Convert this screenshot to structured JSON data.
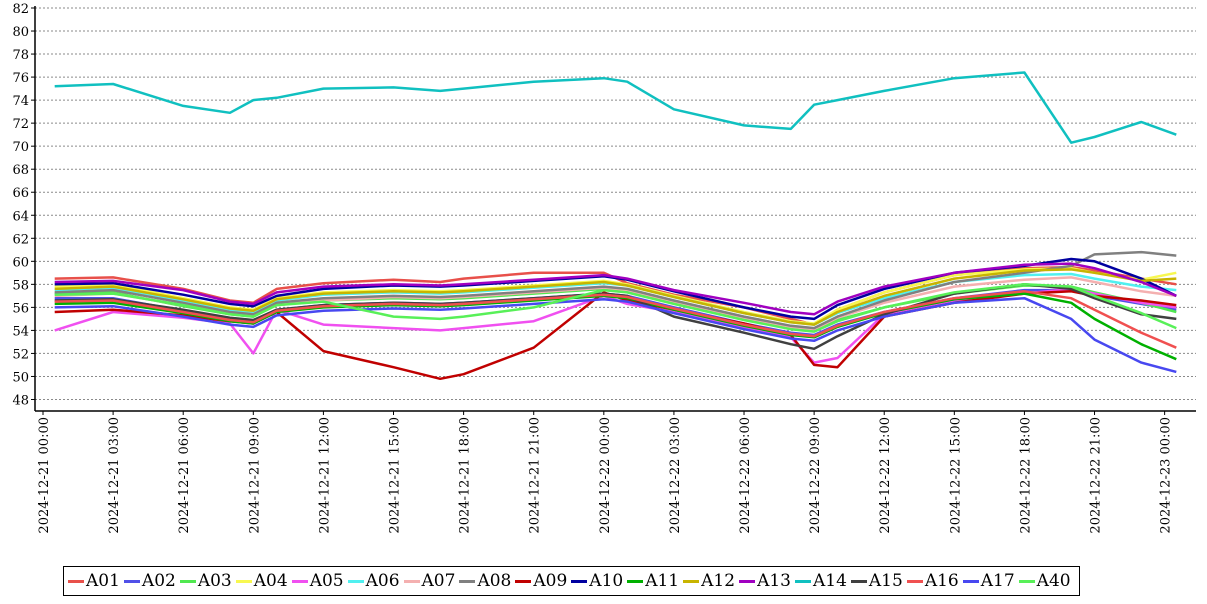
{
  "chart_data": {
    "type": "line",
    "title": "",
    "xlabel": "",
    "ylabel": "",
    "ylim": [
      47,
      82
    ],
    "yticks": [
      48,
      50,
      52,
      54,
      56,
      58,
      60,
      62,
      64,
      66,
      68,
      70,
      72,
      74,
      76,
      78,
      80,
      82
    ],
    "xlim": [
      "2024-12-21 00:00",
      "2024-12-23 01:00"
    ],
    "xticks": [
      "2024-12-21 00:00",
      "2024-12-21 03:00",
      "2024-12-21 06:00",
      "2024-12-21 09:00",
      "2024-12-21 12:00",
      "2024-12-21 15:00",
      "2024-12-21 18:00",
      "2024-12-21 21:00",
      "2024-12-22 00:00",
      "2024-12-22 03:00",
      "2024-12-22 06:00",
      "2024-12-22 09:00",
      "2024-12-22 12:00",
      "2024-12-22 15:00",
      "2024-12-22 18:00",
      "2024-12-22 21:00",
      "2024-12-23 00:00"
    ],
    "grid": "horizontal dashed",
    "legend_position": "bottom",
    "x": [
      "2024-12-21 00:30",
      "2024-12-21 03:00",
      "2024-12-21 06:00",
      "2024-12-21 08:00",
      "2024-12-21 09:00",
      "2024-12-21 10:00",
      "2024-12-21 12:00",
      "2024-12-21 15:00",
      "2024-12-21 17:00",
      "2024-12-21 18:00",
      "2024-12-21 21:00",
      "2024-12-22 00:00",
      "2024-12-22 01:00",
      "2024-12-22 03:00",
      "2024-12-22 06:00",
      "2024-12-22 08:00",
      "2024-12-22 09:00",
      "2024-12-22 10:00",
      "2024-12-22 12:00",
      "2024-12-22 15:00",
      "2024-12-22 18:00",
      "2024-12-22 20:00",
      "2024-12-22 21:00",
      "2024-12-22 23:00",
      "2024-12-23 00:30"
    ],
    "series": [
      {
        "name": "A01",
        "color": "#e8504a",
        "values": [
          58.5,
          58.6,
          57.6,
          56.6,
          56.4,
          57.6,
          58.1,
          58.4,
          58.2,
          58.5,
          59.0,
          59.0,
          58.1,
          57.1,
          56.0,
          55.0,
          54.5,
          55.8,
          57.3,
          58.8,
          59.4,
          59.5,
          59.2,
          58.5,
          58.0
        ]
      },
      {
        "name": "A02",
        "color": "#5050e8",
        "values": [
          56.8,
          56.8,
          55.7,
          55.0,
          54.8,
          55.8,
          56.2,
          56.4,
          56.3,
          56.4,
          56.8,
          57.2,
          57.0,
          56.0,
          54.6,
          53.8,
          53.6,
          54.5,
          55.6,
          56.8,
          57.5,
          57.5,
          57.0,
          56.3,
          55.8
        ]
      },
      {
        "name": "A03",
        "color": "#50e850",
        "values": [
          57.2,
          57.3,
          56.1,
          55.4,
          55.2,
          56.2,
          56.6,
          56.8,
          56.7,
          56.8,
          57.2,
          57.6,
          57.4,
          56.4,
          55.0,
          54.2,
          54.0,
          54.9,
          56.0,
          57.2,
          57.9,
          57.8,
          57.3,
          56.4,
          55.6
        ]
      },
      {
        "name": "A04",
        "color": "#f8f850",
        "values": [
          57.8,
          58.0,
          56.8,
          56.0,
          55.8,
          56.8,
          57.3,
          57.5,
          57.4,
          57.5,
          57.9,
          58.3,
          58.0,
          57.0,
          55.6,
          54.8,
          54.6,
          55.8,
          57.3,
          58.8,
          59.3,
          59.4,
          59.0,
          58.4,
          59.0
        ]
      },
      {
        "name": "A05",
        "color": "#f050f0",
        "values": [
          54.0,
          55.6,
          55.1,
          54.6,
          52.0,
          55.8,
          54.5,
          54.2,
          54.0,
          54.2,
          54.8,
          57.0,
          56.3,
          55.6,
          54.2,
          53.4,
          51.2,
          51.6,
          55.4,
          56.6,
          57.2,
          57.6,
          57.2,
          56.4,
          56.0
        ]
      },
      {
        "name": "A06",
        "color": "#50f0f0",
        "values": [
          57.5,
          57.7,
          56.6,
          55.8,
          55.6,
          56.6,
          57.1,
          57.3,
          57.2,
          57.3,
          57.7,
          58.1,
          57.9,
          56.9,
          55.5,
          54.7,
          54.5,
          55.5,
          56.8,
          58.2,
          58.8,
          58.9,
          58.5,
          57.8,
          57.5
        ]
      },
      {
        "name": "A07",
        "color": "#f4b0b0",
        "values": [
          57.0,
          57.2,
          56.2,
          55.5,
          55.3,
          56.2,
          56.6,
          56.9,
          56.8,
          56.9,
          57.3,
          57.7,
          57.5,
          56.5,
          55.1,
          54.3,
          54.1,
          55.1,
          56.4,
          57.8,
          58.4,
          58.6,
          58.2,
          57.4,
          57.0
        ]
      },
      {
        "name": "A08",
        "color": "#808080",
        "values": [
          57.3,
          57.5,
          56.4,
          55.6,
          55.4,
          56.4,
          56.8,
          57.0,
          56.9,
          57.0,
          57.4,
          57.8,
          57.6,
          56.6,
          55.2,
          54.4,
          54.2,
          55.2,
          56.6,
          58.2,
          59.0,
          59.6,
          60.6,
          60.8,
          60.5
        ]
      },
      {
        "name": "A09",
        "color": "#c00000",
        "values": [
          55.6,
          55.8,
          55.3,
          54.8,
          54.6,
          55.6,
          52.2,
          50.8,
          49.8,
          50.2,
          52.5,
          57.3,
          56.6,
          55.8,
          54.6,
          53.6,
          51.0,
          50.8,
          55.2,
          56.4,
          57.2,
          57.4,
          57.0,
          56.6,
          56.2
        ]
      },
      {
        "name": "A10",
        "color": "#0000a0",
        "values": [
          58.0,
          58.1,
          57.1,
          56.3,
          56.1,
          57.0,
          57.6,
          57.9,
          57.8,
          57.9,
          58.3,
          58.7,
          58.4,
          57.4,
          56.0,
          55.2,
          55.0,
          56.2,
          57.6,
          59.0,
          59.6,
          60.2,
          60.0,
          58.5,
          57.0
        ]
      },
      {
        "name": "A11",
        "color": "#00b000",
        "values": [
          56.3,
          56.4,
          55.5,
          54.8,
          54.6,
          55.6,
          56.0,
          56.2,
          56.1,
          56.2,
          56.6,
          57.0,
          56.8,
          55.8,
          54.4,
          53.6,
          53.4,
          54.3,
          55.5,
          56.7,
          57.2,
          56.4,
          55.0,
          52.8,
          51.5
        ]
      },
      {
        "name": "A12",
        "color": "#c8b400",
        "values": [
          57.6,
          57.8,
          56.7,
          55.9,
          55.7,
          56.7,
          57.2,
          57.4,
          57.3,
          57.4,
          57.8,
          58.2,
          57.9,
          56.9,
          55.5,
          54.7,
          54.5,
          55.6,
          57.0,
          58.5,
          59.2,
          59.3,
          59.0,
          58.3,
          58.5
        ]
      },
      {
        "name": "A13",
        "color": "#a000c0",
        "values": [
          58.2,
          58.3,
          57.5,
          56.5,
          56.3,
          57.3,
          57.8,
          58.0,
          57.9,
          58.0,
          58.4,
          58.8,
          58.5,
          57.5,
          56.4,
          55.6,
          55.4,
          56.5,
          57.8,
          59.0,
          59.7,
          59.8,
          59.4,
          58.2,
          57.0
        ]
      },
      {
        "name": "A14",
        "color": "#10c0c0",
        "values": [
          75.2,
          75.4,
          73.5,
          72.9,
          74.0,
          74.2,
          75.0,
          75.1,
          74.8,
          75.0,
          75.6,
          75.9,
          75.6,
          73.2,
          71.8,
          71.5,
          73.6,
          74.0,
          74.8,
          75.9,
          76.4,
          70.3,
          70.8,
          72.1,
          71.0
        ]
      },
      {
        "name": "A15",
        "color": "#404040",
        "values": [
          56.6,
          56.7,
          55.8,
          55.1,
          54.9,
          55.8,
          56.2,
          56.4,
          56.3,
          56.4,
          56.8,
          57.2,
          57.0,
          55.2,
          53.8,
          52.8,
          52.4,
          53.5,
          55.4,
          57.2,
          58.0,
          57.6,
          56.8,
          55.4,
          55.0
        ]
      },
      {
        "name": "A16",
        "color": "#f05050",
        "values": [
          56.5,
          56.6,
          55.6,
          54.9,
          54.7,
          55.7,
          56.1,
          56.3,
          56.2,
          56.3,
          56.7,
          57.1,
          56.9,
          55.9,
          54.5,
          53.7,
          53.5,
          54.4,
          55.6,
          56.8,
          57.4,
          56.8,
          55.8,
          53.8,
          52.5
        ]
      },
      {
        "name": "A17",
        "color": "#4848f0",
        "values": [
          56.0,
          56.1,
          55.2,
          54.5,
          54.3,
          55.3,
          55.7,
          55.9,
          55.8,
          55.9,
          56.3,
          56.7,
          56.5,
          55.5,
          54.1,
          53.3,
          53.1,
          54.0,
          55.2,
          56.4,
          56.8,
          55.0,
          53.2,
          51.2,
          50.4
        ]
      },
      {
        "name": "A40",
        "color": "#58f058",
        "values": [
          57.1,
          57.2,
          56.2,
          55.4,
          55.2,
          56.2,
          56.5,
          55.2,
          55.0,
          55.2,
          56.0,
          57.5,
          57.3,
          56.3,
          54.9,
          54.1,
          53.9,
          54.8,
          56.0,
          57.3,
          58.0,
          57.8,
          57.0,
          55.5,
          54.2
        ]
      }
    ]
  }
}
